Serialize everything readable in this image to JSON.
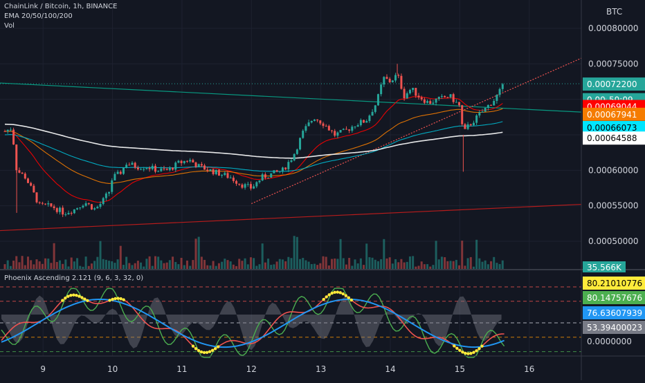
{
  "chart_data": [
    {
      "type": "candlestick",
      "title": "ChainLink / Bitcoin, 1h, BINANCE",
      "indicators_label": "EMA 20/50/100/200",
      "volume_label": "Vol",
      "currency_label": "BTC",
      "x_ticks": [
        "9",
        "10",
        "11",
        "12",
        "13",
        "14",
        "15",
        "16"
      ],
      "y_ticks": [
        "0.00080000",
        "0.00075000",
        "0.00060000",
        "0.00055000",
        "0.00050000"
      ],
      "ylim": [
        0.00046,
        0.00084
      ],
      "price_labels": [
        {
          "text": "0.00072200",
          "value": 0.000722,
          "color": "#26a69a",
          "text_color": "#ffffff"
        },
        {
          "text": "0.000",
          "extra": "50:09",
          "value": 0.0007,
          "color": "#26a69a",
          "text_color": "#ffffff"
        },
        {
          "text": "0.00069044",
          "value": 0.00069044,
          "color": "#ff0000",
          "text_color": "#ffffff"
        },
        {
          "text": "0.00067941",
          "value": 0.00067941,
          "color": "#f57c00",
          "text_color": "#ffffff"
        },
        {
          "text": "0.00066073",
          "value": 0.00066073,
          "color": "#00e5ff",
          "text_color": "#000000"
        },
        {
          "text": "0.00064588",
          "value": 0.00064588,
          "color": "#ffffff",
          "text_color": "#000000"
        }
      ],
      "volume_label_value": "35.566K",
      "price_path": [
        [
          8.45,
          0.000655
        ],
        [
          8.55,
          0.00066
        ],
        [
          8.62,
          0.0006
        ],
        [
          8.75,
          0.00059
        ],
        [
          8.85,
          0.00057
        ],
        [
          8.95,
          0.00055
        ],
        [
          9.05,
          0.00055
        ],
        [
          9.15,
          0.000548
        ],
        [
          9.3,
          0.00054
        ],
        [
          9.45,
          0.000545
        ],
        [
          9.6,
          0.000555
        ],
        [
          9.75,
          0.000545
        ],
        [
          9.85,
          0.000555
        ],
        [
          9.95,
          0.00057
        ],
        [
          10.0,
          0.00059
        ],
        [
          10.1,
          0.000595
        ],
        [
          10.2,
          0.00061
        ],
        [
          10.35,
          0.000605
        ],
        [
          10.5,
          0.000605
        ],
        [
          10.65,
          0.0006
        ],
        [
          10.8,
          0.0006
        ],
        [
          10.95,
          0.00061
        ],
        [
          11.1,
          0.000615
        ],
        [
          11.25,
          0.000605
        ],
        [
          11.4,
          0.0006
        ],
        [
          11.55,
          0.000595
        ],
        [
          11.7,
          0.00059
        ],
        [
          11.85,
          0.00058
        ],
        [
          12.0,
          0.000575
        ],
        [
          12.15,
          0.00059
        ],
        [
          12.3,
          0.000595
        ],
        [
          12.45,
          0.0006
        ],
        [
          12.6,
          0.00062
        ],
        [
          12.75,
          0.000655
        ],
        [
          12.9,
          0.000675
        ],
        [
          13.05,
          0.000665
        ],
        [
          13.2,
          0.00065
        ],
        [
          13.35,
          0.000655
        ],
        [
          13.5,
          0.000665
        ],
        [
          13.65,
          0.00067
        ],
        [
          13.8,
          0.000695
        ],
        [
          13.9,
          0.00073
        ],
        [
          14.0,
          0.000725
        ],
        [
          14.1,
          0.000735
        ],
        [
          14.2,
          0.000705
        ],
        [
          14.3,
          0.000715
        ],
        [
          14.4,
          0.000705
        ],
        [
          14.55,
          0.000695
        ],
        [
          14.7,
          0.0007
        ],
        [
          14.85,
          0.000705
        ],
        [
          15.0,
          0.00069
        ],
        [
          15.05,
          0.00065
        ],
        [
          15.1,
          0.00066
        ],
        [
          15.25,
          0.000675
        ],
        [
          15.4,
          0.00069
        ],
        [
          15.5,
          0.0007
        ],
        [
          15.65,
          0.000722
        ]
      ],
      "trendlines": [
        {
          "name": "green-resistance",
          "from": [
            8.38,
            0.000723
          ],
          "to": [
            16.75,
            0.000682
          ],
          "color": "#089981"
        },
        {
          "name": "red-support",
          "from": [
            8.38,
            0.000515
          ],
          "to": [
            16.75,
            0.000552
          ],
          "color": "#b71c1c"
        },
        {
          "name": "dotted-uptrend",
          "from": [
            12.0,
            0.000553
          ],
          "to": [
            16.75,
            0.000758
          ],
          "color": "#ef5350"
        }
      ]
    },
    {
      "type": "line",
      "title": "Phoenix Ascending 2.121 (9, 6, 3, 32, 0)",
      "y_ticks": [
        "0.0000000"
      ],
      "value_labels": [
        {
          "text": "80.21010776",
          "color": "#ffeb3b",
          "text_color": "#000000"
        },
        {
          "text": "80.14757676",
          "color": "#4caf50",
          "text_color": "#ffffff"
        },
        {
          "text": "76.63607939",
          "color": "#2196f3",
          "text_color": "#ffffff"
        },
        {
          "text": "53.39400023",
          "color": "#787b86",
          "text_color": "#ffffff"
        }
      ]
    }
  ]
}
